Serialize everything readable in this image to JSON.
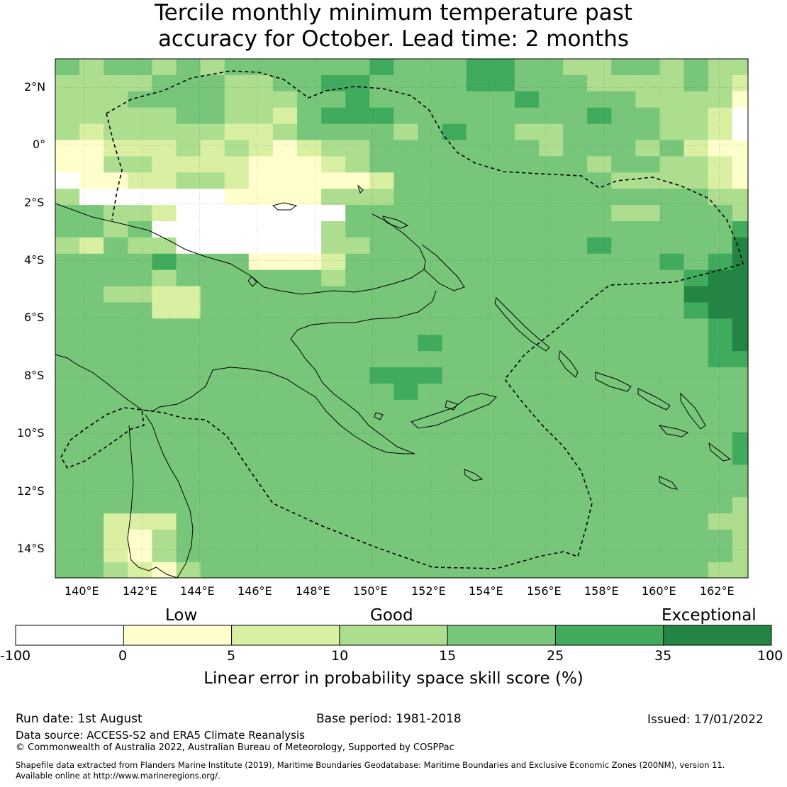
{
  "title": {
    "line1": "Tercile monthly minimum temperature past",
    "line2": "accuracy for October. Lead time: 2 months"
  },
  "map": {
    "lat_labels": [
      "2°N",
      "0°",
      "2°S",
      "4°S",
      "6°S",
      "8°S",
      "10°S",
      "12°S",
      "14°S"
    ],
    "lon_labels": [
      "140°E",
      "142°E",
      "144°E",
      "146°E",
      "148°E",
      "150°E",
      "152°E",
      "154°E",
      "156°E",
      "158°E",
      "160°E",
      "162°E"
    ],
    "lon_range": [
      139.0,
      163.0
    ],
    "lat_range": [
      -15.0,
      3.0
    ],
    "grid": true
  },
  "colorbar": {
    "categories": [
      "Low",
      "Good",
      "Exceptional"
    ],
    "boundaries": [
      "-100",
      "0",
      "5",
      "10",
      "15",
      "25",
      "35",
      "100"
    ],
    "colors": [
      "#ffffff",
      "#ffffcc",
      "#d9f0a3",
      "#addd8e",
      "#78c679",
      "#41ab5d",
      "#238443"
    ],
    "label": "Linear error in probability space skill score (%)"
  },
  "footer": {
    "run_date": "Run date: 1st August",
    "base_period": "Base period: 1981-2018",
    "issued": "Issued: 17/01/2022",
    "data_source": "Data source: ACCESS-S2 and ERA5 Climate Reanalysis",
    "copyright": "© Commonwealth of Australia 2022, Australian Bureau of Meteorology, Supported by COSPPac",
    "shapefile": "Shapefile data extracted from Flanders Marine Institute (2019), Maritime Boundaries Geodatabase: Maritime Boundaries and Exclusive Economic Zones (200NM), version 11.",
    "available": "Available online at http://www.marineregions.org/."
  }
}
